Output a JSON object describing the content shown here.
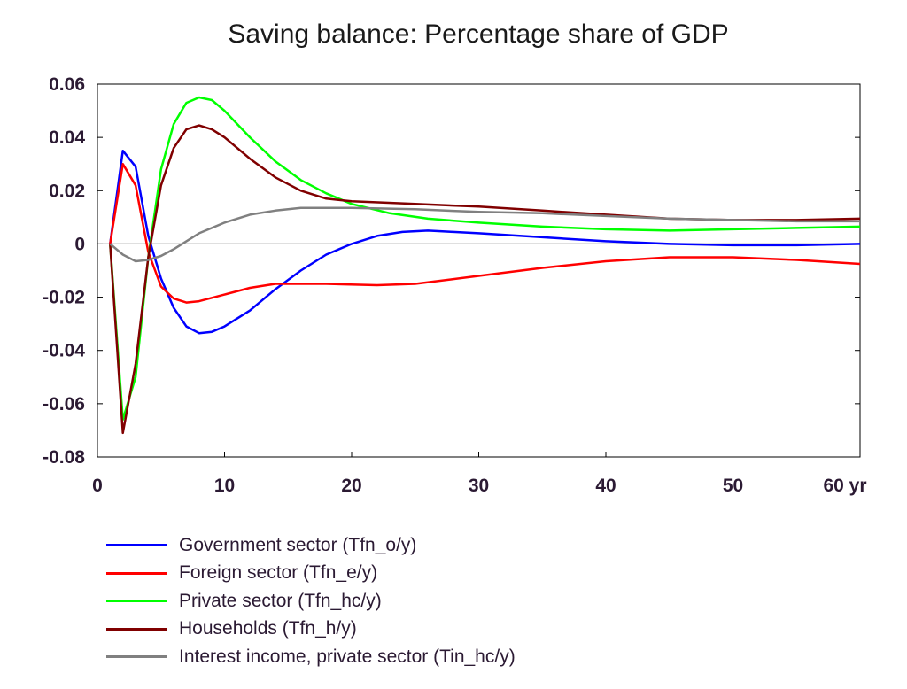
{
  "chart_data": {
    "type": "line",
    "title": "Saving balance: Percentage share of GDP",
    "xlim": [
      0,
      60
    ],
    "ylim": [
      -0.08,
      0.06
    ],
    "x_ticks": [
      0,
      10,
      20,
      30,
      40,
      50,
      60
    ],
    "x_tick_labels": [
      "0",
      "10",
      "20",
      "30",
      "40",
      "50",
      "60 yr"
    ],
    "y_ticks": [
      -0.08,
      -0.06,
      -0.04,
      -0.02,
      0,
      0.02,
      0.04,
      0.06
    ],
    "y_tick_labels": [
      "-0.08",
      "-0.06",
      "-0.04",
      "-0.02",
      "0",
      "0.02",
      "0.04",
      "0.06"
    ],
    "grid": false,
    "zero_line": true,
    "legend_position": "bottom",
    "series": [
      {
        "name": "Government sector (Tfn_o/y)",
        "color": "#0000ff",
        "points": [
          [
            1,
            0
          ],
          [
            2,
            0.035
          ],
          [
            3,
            0.029
          ],
          [
            4,
            0.003
          ],
          [
            5,
            -0.013
          ],
          [
            6,
            -0.024
          ],
          [
            7,
            -0.031
          ],
          [
            8,
            -0.0335
          ],
          [
            9,
            -0.033
          ],
          [
            10,
            -0.031
          ],
          [
            12,
            -0.025
          ],
          [
            14,
            -0.017
          ],
          [
            16,
            -0.01
          ],
          [
            18,
            -0.004
          ],
          [
            20,
            0
          ],
          [
            22,
            0.003
          ],
          [
            24,
            0.0045
          ],
          [
            26,
            0.005
          ],
          [
            28,
            0.0045
          ],
          [
            30,
            0.004
          ],
          [
            35,
            0.0025
          ],
          [
            40,
            0.001
          ],
          [
            45,
            0
          ],
          [
            50,
            -0.0005
          ],
          [
            55,
            -0.0005
          ],
          [
            60,
            0
          ]
        ]
      },
      {
        "name": "Foreign sector (Tfn_e/y)",
        "color": "#ff0000",
        "points": [
          [
            1,
            0
          ],
          [
            2,
            0.03
          ],
          [
            3,
            0.022
          ],
          [
            4,
            -0.003
          ],
          [
            5,
            -0.016
          ],
          [
            6,
            -0.0205
          ],
          [
            7,
            -0.022
          ],
          [
            8,
            -0.0215
          ],
          [
            10,
            -0.019
          ],
          [
            12,
            -0.0165
          ],
          [
            14,
            -0.015
          ],
          [
            18,
            -0.015
          ],
          [
            22,
            -0.0155
          ],
          [
            25,
            -0.015
          ],
          [
            30,
            -0.012
          ],
          [
            35,
            -0.009
          ],
          [
            40,
            -0.0065
          ],
          [
            45,
            -0.005
          ],
          [
            50,
            -0.005
          ],
          [
            55,
            -0.006
          ],
          [
            60,
            -0.0075
          ]
        ]
      },
      {
        "name": "Private sector (Tfn_hc/y)",
        "color": "#00ff00",
        "points": [
          [
            1,
            0
          ],
          [
            2,
            -0.066
          ],
          [
            3,
            -0.05
          ],
          [
            4,
            -0.005
          ],
          [
            5,
            0.028
          ],
          [
            6,
            0.045
          ],
          [
            7,
            0.053
          ],
          [
            8,
            0.055
          ],
          [
            9,
            0.054
          ],
          [
            10,
            0.05
          ],
          [
            12,
            0.04
          ],
          [
            14,
            0.031
          ],
          [
            16,
            0.024
          ],
          [
            18,
            0.019
          ],
          [
            20,
            0.015
          ],
          [
            23,
            0.0115
          ],
          [
            26,
            0.0095
          ],
          [
            30,
            0.008
          ],
          [
            35,
            0.0065
          ],
          [
            40,
            0.0055
          ],
          [
            45,
            0.005
          ],
          [
            50,
            0.0055
          ],
          [
            55,
            0.006
          ],
          [
            60,
            0.0065
          ]
        ]
      },
      {
        "name": "Households (Tfn_h/y)",
        "color": "#800000",
        "points": [
          [
            1,
            0
          ],
          [
            2,
            -0.071
          ],
          [
            3,
            -0.045
          ],
          [
            4,
            -0.005
          ],
          [
            5,
            0.022
          ],
          [
            6,
            0.036
          ],
          [
            7,
            0.043
          ],
          [
            8,
            0.0445
          ],
          [
            9,
            0.043
          ],
          [
            10,
            0.04
          ],
          [
            12,
            0.032
          ],
          [
            14,
            0.025
          ],
          [
            16,
            0.02
          ],
          [
            18,
            0.017
          ],
          [
            20,
            0.016
          ],
          [
            25,
            0.015
          ],
          [
            30,
            0.014
          ],
          [
            35,
            0.0125
          ],
          [
            40,
            0.011
          ],
          [
            45,
            0.0095
          ],
          [
            50,
            0.009
          ],
          [
            55,
            0.009
          ],
          [
            60,
            0.0095
          ]
        ]
      },
      {
        "name": "Interest income, private sector (Tin_hc/y)",
        "color": "#808080",
        "points": [
          [
            1,
            0
          ],
          [
            2,
            -0.004
          ],
          [
            3,
            -0.0065
          ],
          [
            4,
            -0.006
          ],
          [
            5,
            -0.0045
          ],
          [
            6,
            -0.002
          ],
          [
            7,
            0.001
          ],
          [
            8,
            0.004
          ],
          [
            10,
            0.008
          ],
          [
            12,
            0.011
          ],
          [
            14,
            0.0125
          ],
          [
            16,
            0.0135
          ],
          [
            18,
            0.0135
          ],
          [
            20,
            0.0135
          ],
          [
            25,
            0.013
          ],
          [
            30,
            0.012
          ],
          [
            35,
            0.0115
          ],
          [
            40,
            0.0105
          ],
          [
            45,
            0.0095
          ],
          [
            50,
            0.009
          ],
          [
            55,
            0.0085
          ],
          [
            60,
            0.0085
          ]
        ]
      }
    ]
  }
}
